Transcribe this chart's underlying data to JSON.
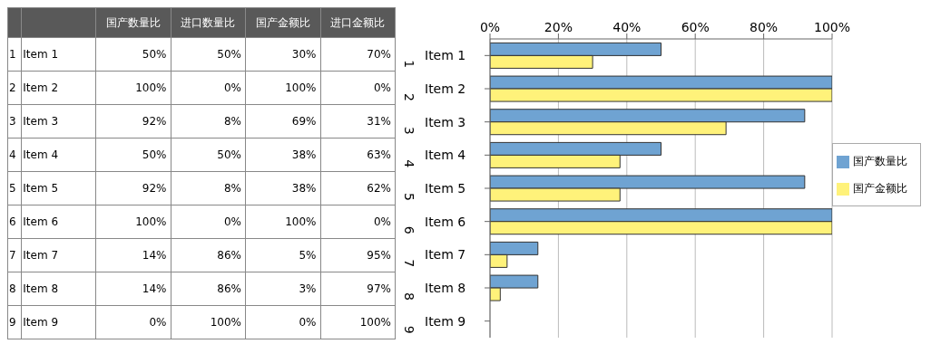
{
  "chart_data": [
    {
      "type": "other",
      "categories": [
        "1 Item 1",
        "2 Item 2",
        "3 Item 3",
        "4 Item 4",
        "5 Item 5",
        "6 Item 6",
        "7 Item 7",
        "8 Item 8",
        "9 Item 9"
      ],
      "series": [
        {
          "name": "国产数量比",
          "values": [
            50,
            100,
            92,
            50,
            92,
            100,
            14,
            14,
            0
          ],
          "value_labels": [
            "50%",
            "100%",
            "92%",
            "50%",
            "92%",
            "100%",
            "14%",
            "14%",
            "0%"
          ]
        },
        {
          "name": "进口数量比",
          "values": [
            50,
            0,
            8,
            50,
            8,
            0,
            86,
            86,
            100
          ],
          "value_labels": [
            "50%",
            "0%",
            "8%",
            "50%",
            "8%",
            "0%",
            "86%",
            "86%",
            "100%"
          ]
        },
        {
          "name": "国产金额比",
          "values": [
            30,
            100,
            69,
            38,
            38,
            100,
            5,
            3,
            0
          ],
          "value_labels": [
            "30%",
            "100%",
            "69%",
            "38%",
            "38%",
            "100%",
            "5%",
            "3%",
            "0%"
          ]
        },
        {
          "name": "进口金额比",
          "values": [
            70,
            0,
            31,
            63,
            62,
            0,
            95,
            97,
            100
          ],
          "value_labels": [
            "70%",
            "0%",
            "31%",
            "63%",
            "62%",
            "0%",
            "95%",
            "97%",
            "100%"
          ]
        }
      ]
    },
    {
      "type": "bar",
      "orientation": "horizontal",
      "categories": [
        "1 Item 1",
        "2 Item 2",
        "3 Item 3",
        "4 Item 4",
        "5 Item 5",
        "6 Item 6",
        "7 Item 7",
        "8 Item 8",
        "9 Item 9"
      ],
      "series": [
        {
          "name": "国产数量比",
          "color": "#6fa3d2",
          "values": [
            50,
            100,
            92,
            50,
            92,
            100,
            14,
            14,
            0
          ]
        },
        {
          "name": "国产金额比",
          "color": "#fff27a",
          "values": [
            30,
            100,
            69,
            38,
            38,
            100,
            5,
            3,
            0
          ]
        }
      ],
      "xlim": [
        0,
        100
      ],
      "xticks": [
        {
          "value": 0,
          "label": "0%"
        },
        {
          "value": 20,
          "label": "20%"
        },
        {
          "value": 40,
          "label": "40%"
        },
        {
          "value": 60,
          "label": "60%"
        },
        {
          "value": 80,
          "label": "80%"
        },
        {
          "value": 100,
          "label": "100%"
        }
      ],
      "grid": "x",
      "legend": "right"
    }
  ]
}
